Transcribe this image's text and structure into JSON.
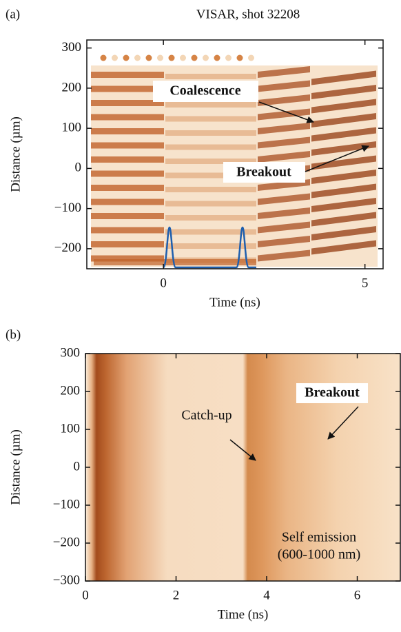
{
  "chart_data": [
    {
      "type": "streak",
      "panel_label": "(a)",
      "title": "VISAR, shot 32208",
      "x_label": "Time (ns)",
      "y_label": "Distance (µm)",
      "xlim": [
        -1.9,
        5.45
      ],
      "xticks": [
        0,
        5
      ],
      "ylim": [
        -250,
        320
      ],
      "yticks": [
        {
          "value": -200,
          "label": "−200"
        },
        {
          "value": -100,
          "label": "−100"
        },
        0,
        100,
        200,
        300
      ],
      "annotations": [
        "Coalescence",
        "Breakout"
      ]
    },
    {
      "type": "streak",
      "panel_label": "(b)",
      "x_label": "Time (ns)",
      "y_label": "Distance (µm)",
      "xlim": [
        0,
        6.95
      ],
      "xticks": [
        0,
        2,
        4,
        6
      ],
      "ylim": [
        -300,
        300
      ],
      "yticks": [
        {
          "value": -300,
          "label": "−300"
        },
        {
          "value": -200,
          "label": "−200"
        },
        {
          "value": -100,
          "label": "−100"
        },
        0,
        100,
        200,
        300
      ],
      "annotations": [
        "Catch-up",
        "Breakout",
        "Self emission",
        "(600-1000 nm)"
      ]
    }
  ]
}
